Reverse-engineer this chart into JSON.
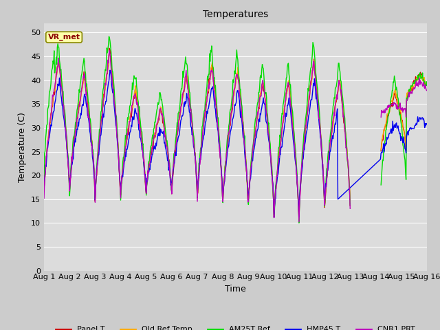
{
  "title": "Temperatures",
  "xlabel": "Time",
  "ylabel": "Temperature (C)",
  "ylim": [
    0,
    52
  ],
  "yticks": [
    0,
    5,
    10,
    15,
    20,
    25,
    30,
    35,
    40,
    45,
    50
  ],
  "xlim": [
    0,
    15
  ],
  "annotation": "VR_met",
  "legend_entries": [
    "Panel T",
    "Old Ref Temp",
    "AM25T Ref",
    "HMP45 T",
    "CNR1 PRT"
  ],
  "colors": {
    "Panel T": "#cc0000",
    "Old Ref Temp": "#ffaa00",
    "AM25T Ref": "#00dd00",
    "HMP45 T": "#0000ee",
    "CNR1 PRT": "#bb00bb"
  },
  "fig_bg": "#cccccc",
  "plot_bg": "#dcdcdc",
  "grid_color": "#ffffff",
  "title_fontsize": 10,
  "label_fontsize": 9,
  "tick_fontsize": 8
}
